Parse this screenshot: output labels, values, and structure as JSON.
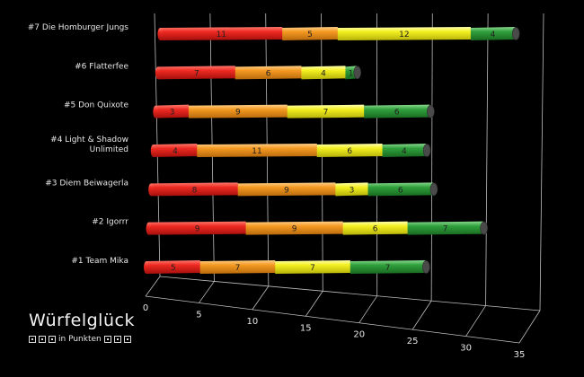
{
  "chart_data": {
    "type": "bar",
    "orientation": "horizontal",
    "stacked": true,
    "title": "Würfelglück",
    "subtitle": "in Punkten",
    "categories": [
      "#1 Team Mika",
      "#2 Igorrr",
      "#3 Diem Beiwagerla",
      "#4 Light & Shadow Unlimited",
      "#5 Don Quixote",
      "#6 Flatterfee",
      "#7 Die Homburger Jungs"
    ],
    "category_lines": [
      [
        "#1 Team Mika"
      ],
      [
        "#2 Igorrr"
      ],
      [
        "#3 Diem Beiwagerla"
      ],
      [
        "#4 Light & Shadow",
        "Unlimited"
      ],
      [
        "#5 Don Quixote"
      ],
      [
        "#6 Flatterfee"
      ],
      [
        "#7 Die Homburger Jungs"
      ]
    ],
    "series": [
      {
        "color": "#e8211d",
        "values": [
          5,
          9,
          8,
          4,
          3,
          7,
          11
        ]
      },
      {
        "color": "#f49a1f",
        "values": [
          7,
          9,
          9,
          11,
          9,
          6,
          5
        ]
      },
      {
        "color": "#f2ef1e",
        "values": [
          7,
          6,
          3,
          6,
          7,
          4,
          12
        ]
      },
      {
        "color": "#2f9a3a",
        "values": [
          7,
          7,
          6,
          4,
          6,
          1,
          4
        ]
      }
    ],
    "xlim": [
      0,
      35
    ],
    "xticks": [
      "0",
      "5",
      "10",
      "15",
      "20",
      "25",
      "30",
      "35"
    ],
    "grid": true,
    "legend": "none"
  }
}
